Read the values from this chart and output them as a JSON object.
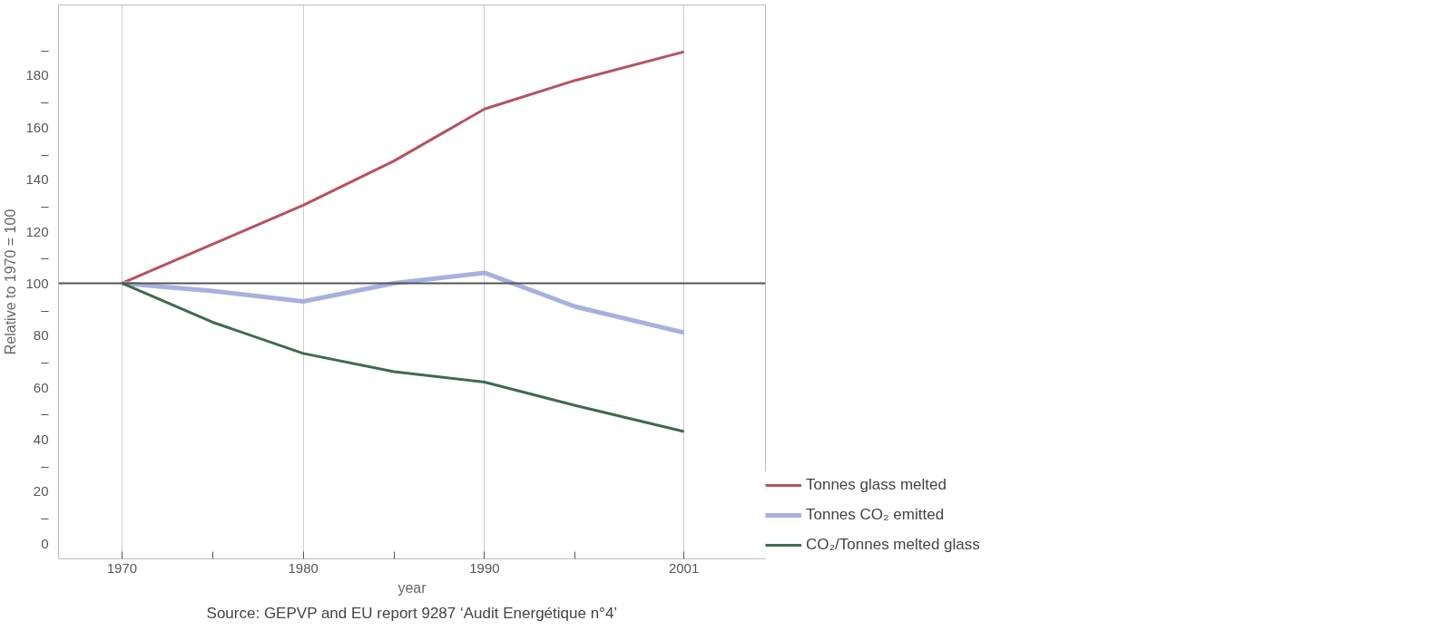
{
  "chart_data": {
    "type": "line",
    "ylabel": "Relative to 1970 = 100",
    "xlabel": "year",
    "annotations": [
      "Source: GEPVP and EU report 9287 ‘Audit Energétique n°4’"
    ],
    "x": [
      1970,
      1975,
      1980,
      1985,
      1990,
      1995,
      2001
    ],
    "series": [
      {
        "name": "Tonnes glass melted",
        "color": "#b5535f",
        "values": [
          100,
          115,
          130,
          147,
          167,
          178,
          189
        ]
      },
      {
        "name": "Tonnes CO₂ emitted",
        "color": "#a7b1e0",
        "values": [
          100,
          97,
          93,
          100,
          104,
          91,
          81
        ]
      },
      {
        "name": "CO₂/Tonnes melted glass",
        "color": "#3d6b4d",
        "values": [
          100,
          85,
          73,
          66,
          62,
          53,
          43
        ]
      }
    ],
    "xlim": [
      1966.5,
      2005.5
    ],
    "xticks": [
      1970,
      {
        "value": 1975,
        "label": null
      },
      1980,
      {
        "value": 1985,
        "label": null
      },
      1990,
      {
        "value": 1995,
        "label": null
      },
      2001
    ],
    "ylim": [
      -6,
      207
    ],
    "yticks": [
      0,
      {
        "value": 10,
        "label": "–"
      },
      20,
      {
        "value": 30,
        "label": "–"
      },
      40,
      {
        "value": 50,
        "label": "–"
      },
      60,
      {
        "value": 70,
        "label": "–"
      },
      80,
      {
        "value": 90,
        "label": "–"
      },
      100,
      {
        "value": 110,
        "label": "–"
      },
      120,
      {
        "value": 130,
        "label": "–"
      },
      140,
      {
        "value": 150,
        "label": "–"
      },
      160,
      {
        "value": 170,
        "label": "–"
      },
      180,
      {
        "value": 190,
        "label": "–"
      }
    ],
    "ref_lines": [
      {
        "axis": "y",
        "value": 100,
        "label": null,
        "color": "#555555"
      }
    ],
    "grid": "x",
    "legend": "bottom right",
    "line_style": "solid",
    "marker": "none"
  }
}
